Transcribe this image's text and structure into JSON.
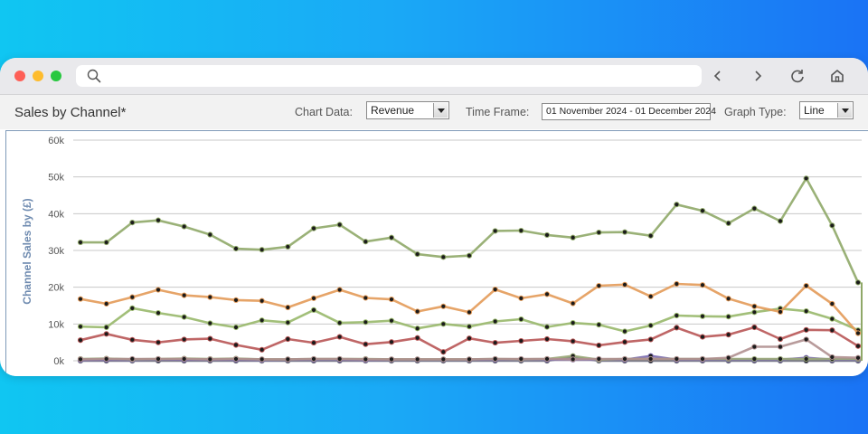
{
  "page": {
    "title": "Sales by Channel*"
  },
  "controls": {
    "chart_data_label": "Chart Data:",
    "chart_data_value": "Revenue",
    "time_frame_label": "Time Frame:",
    "time_frame_value": "01 November 2024 - 01 December 2024",
    "graph_type_label": "Graph Type:",
    "graph_type_value": "Line"
  },
  "icons": {
    "search": "search-icon",
    "back": "chevron-left-icon",
    "forward": "chevron-right-icon",
    "reload": "reload-icon",
    "home": "home-icon"
  },
  "chart_data": {
    "type": "line",
    "ylabel": "Channel Sales by (£)",
    "ylim": [
      0,
      60000
    ],
    "yticks": [
      {
        "value": 0,
        "label": "0k"
      },
      {
        "value": 10000,
        "label": "10k"
      },
      {
        "value": 20000,
        "label": "20k"
      },
      {
        "value": 30000,
        "label": "30k"
      },
      {
        "value": 40000,
        "label": "40k"
      },
      {
        "value": 50000,
        "label": "50k"
      },
      {
        "value": 60000,
        "label": "60k"
      }
    ],
    "grid": true,
    "series": [
      {
        "color": "#8fa868",
        "values": [
          32200,
          32200,
          37600,
          38200,
          36500,
          34300,
          30500,
          30200,
          31000,
          36000,
          37000,
          32400,
          33500,
          29000,
          28200,
          28600,
          35300,
          35400,
          34200,
          33500,
          34900,
          35000,
          34000,
          42500,
          40800,
          37400,
          41400,
          38000,
          49600,
          36800,
          21300
        ]
      },
      {
        "color": "#e39a58",
        "values": [
          16800,
          15500,
          17300,
          19300,
          17800,
          17300,
          16500,
          16300,
          14500,
          17000,
          19300,
          17100,
          16700,
          13400,
          14800,
          13200,
          19400,
          17000,
          18100,
          15600,
          20400,
          20700,
          17500,
          20900,
          20600,
          16900,
          14800,
          13300,
          20400,
          15500,
          7500
        ]
      },
      {
        "color": "#98b86a",
        "values": [
          9300,
          9100,
          14300,
          13000,
          11900,
          10200,
          9100,
          11000,
          10400,
          13800,
          10300,
          10500,
          10900,
          8800,
          10000,
          9300,
          10700,
          11300,
          9200,
          10300,
          9800,
          8000,
          9600,
          12300,
          12100,
          12000,
          13200,
          14200,
          13500,
          11400,
          8300
        ]
      },
      {
        "color": "#b85555",
        "values": [
          5600,
          7300,
          5700,
          5000,
          5800,
          6000,
          4300,
          3000,
          5900,
          4900,
          6500,
          4500,
          5100,
          6200,
          2400,
          6100,
          4900,
          5400,
          5900,
          5300,
          4200,
          5100,
          5800,
          9000,
          6500,
          7100,
          9100,
          5900,
          8400,
          8300,
          4000
        ]
      },
      {
        "color": "#b09090",
        "values": [
          400,
          500,
          500,
          500,
          500,
          400,
          500,
          400,
          400,
          500,
          500,
          400,
          400,
          400,
          400,
          400,
          500,
          500,
          500,
          400,
          500,
          500,
          500,
          500,
          500,
          800,
          3800,
          3800,
          5800,
          1000,
          800
        ]
      },
      {
        "color": "#9aa878",
        "values": [
          500,
          600,
          400,
          500,
          600,
          500,
          600,
          400,
          400,
          500,
          500,
          500,
          400,
          400,
          400,
          400,
          500,
          400,
          500,
          1300,
          300,
          500,
          500,
          500,
          500,
          500,
          500,
          500,
          500,
          500,
          500
        ]
      },
      {
        "color": "#7a6ab0",
        "values": [
          200,
          300,
          200,
          400,
          300,
          300,
          300,
          200,
          300,
          300,
          300,
          200,
          300,
          300,
          300,
          300,
          300,
          300,
          300,
          300,
          300,
          300,
          1300,
          300,
          300,
          300,
          300,
          300,
          800,
          300,
          300
        ]
      },
      {
        "color": "#707080",
        "values": [
          0,
          0,
          0,
          0,
          0,
          0,
          0,
          0,
          0,
          0,
          0,
          0,
          0,
          0,
          0,
          0,
          0,
          0,
          0,
          1000,
          0,
          0,
          0,
          0,
          0,
          0,
          0,
          0,
          0,
          0,
          0
        ]
      }
    ]
  }
}
